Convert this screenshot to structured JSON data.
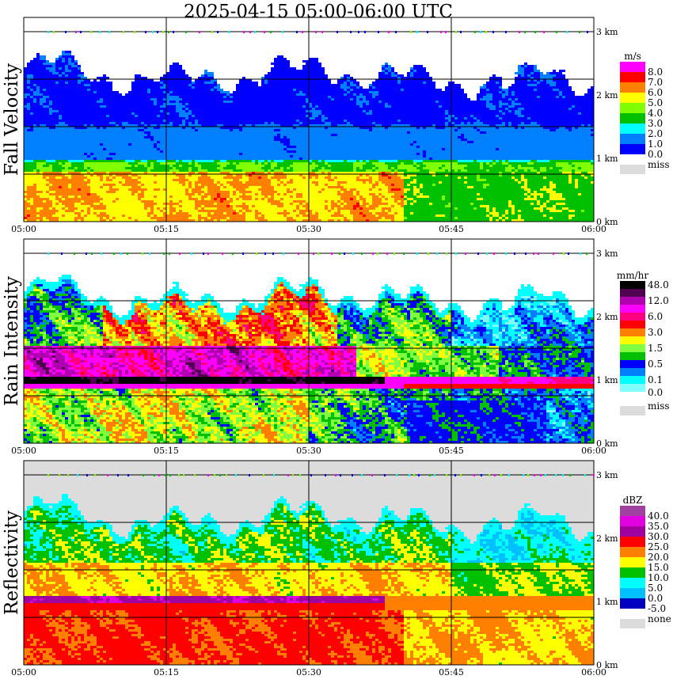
{
  "title": "2025-04-15   05:00-06:00 UTC",
  "chart_data": [
    {
      "type": "heatmap",
      "ylabel": "Fall Velocity",
      "unit": "m/s",
      "xticks": [
        "05:00",
        "05:15",
        "05:30",
        "05:45",
        "06:00"
      ],
      "yticks": [
        "3 km",
        "2 km",
        "1 km",
        "0 km"
      ],
      "xlim": [
        "05:00",
        "06:00"
      ],
      "ylim_km": [
        0,
        3.2
      ],
      "legend": [
        {
          "color": "#ff00ff",
          "label": "8.0"
        },
        {
          "color": "#ff0000",
          "label": "7.0"
        },
        {
          "color": "#ff8000",
          "label": "6.0"
        },
        {
          "color": "#ffff00",
          "label": "5.0"
        },
        {
          "color": "#80ff00",
          "label": "4.0"
        },
        {
          "color": "#00c000",
          "label": "3.0"
        },
        {
          "color": "#00ffff",
          "label": "2.0"
        },
        {
          "color": "#0080ff",
          "label": "1.0"
        },
        {
          "color": "#0000ff",
          "label": "0.0"
        }
      ],
      "missing": {
        "color": "#dcdcdc",
        "label": "miss"
      },
      "background": "#ffffff"
    },
    {
      "type": "heatmap",
      "ylabel": "Rain Intensity",
      "unit": "mm/hr",
      "xticks": [
        "05:00",
        "05:15",
        "05:30",
        "05:45",
        "06:00"
      ],
      "yticks": [
        "3 km",
        "2 km",
        "1 km",
        "0 km"
      ],
      "xlim": [
        "05:00",
        "06:00"
      ],
      "ylim_km": [
        0,
        3.2
      ],
      "legend": [
        {
          "color": "#000000",
          "label": "48.0"
        },
        {
          "color": "#500050",
          "label": ""
        },
        {
          "color": "#b000b0",
          "label": "12.0"
        },
        {
          "color": "#ff00ff",
          "label": ""
        },
        {
          "color": "#ff0080",
          "label": "6.0"
        },
        {
          "color": "#ff0000",
          "label": ""
        },
        {
          "color": "#ff8000",
          "label": "3.0"
        },
        {
          "color": "#ffff00",
          "label": ""
        },
        {
          "color": "#80ff40",
          "label": "1.5"
        },
        {
          "color": "#00c000",
          "label": ""
        },
        {
          "color": "#0000ff",
          "label": "0.5"
        },
        {
          "color": "#0080ff",
          "label": ""
        },
        {
          "color": "#00ffff",
          "label": "0.1"
        },
        {
          "color": "#80ffff",
          "label": "0.0"
        }
      ],
      "missing": {
        "color": "#dcdcdc",
        "label": "miss"
      },
      "background": "#ffffff"
    },
    {
      "type": "heatmap",
      "ylabel": "Reflectivity",
      "unit": "dBZ",
      "xticks": [
        "05:00",
        "05:15",
        "05:30",
        "05:45",
        "06:00"
      ],
      "yticks": [
        "3 km",
        "2 km",
        "1 km",
        "0 km"
      ],
      "xlim": [
        "05:00",
        "06:00"
      ],
      "ylim_km": [
        0,
        3.2
      ],
      "legend": [
        {
          "color": "#a040a0",
          "label": "40.0"
        },
        {
          "color": "#e000e0",
          "label": "35.0"
        },
        {
          "color": "#a000a0",
          "label": "30.0"
        },
        {
          "color": "#ff0000",
          "label": "25.0"
        },
        {
          "color": "#ff8000",
          "label": "20.0"
        },
        {
          "color": "#ffff00",
          "label": "15.0"
        },
        {
          "color": "#00c000",
          "label": "10.0"
        },
        {
          "color": "#00ffff",
          "label": "5.0"
        },
        {
          "color": "#00c0ff",
          "label": "0.0"
        },
        {
          "color": "#0000c0",
          "label": "-5.0"
        }
      ],
      "missing": {
        "color": "#dcdcdc",
        "label": "none"
      },
      "background": "#dcdcdc"
    }
  ]
}
